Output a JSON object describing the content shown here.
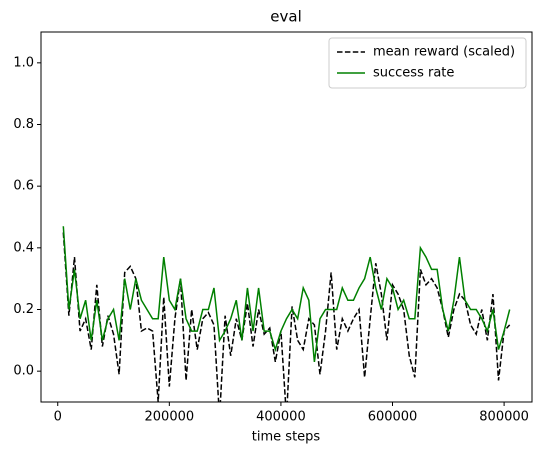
{
  "chart_data": {
    "type": "line",
    "title": "eval",
    "xlabel": "time steps",
    "x": [
      10000,
      20000,
      30000,
      40000,
      50000,
      60000,
      70000,
      80000,
      90000,
      100000,
      110000,
      120000,
      130000,
      140000,
      150000,
      160000,
      170000,
      180000,
      190000,
      200000,
      210000,
      220000,
      230000,
      240000,
      250000,
      260000,
      270000,
      280000,
      290000,
      300000,
      310000,
      320000,
      330000,
      340000,
      350000,
      360000,
      370000,
      380000,
      390000,
      400000,
      410000,
      420000,
      430000,
      440000,
      450000,
      460000,
      470000,
      480000,
      490000,
      500000,
      510000,
      520000,
      530000,
      540000,
      550000,
      560000,
      570000,
      580000,
      590000,
      600000,
      610000,
      620000,
      630000,
      640000,
      650000,
      660000,
      670000,
      680000,
      690000,
      700000,
      710000,
      720000,
      730000,
      740000,
      750000,
      760000,
      770000,
      780000,
      790000,
      800000,
      810000
    ],
    "series": [
      {
        "name": "mean reward (scaled)",
        "color": "#000000",
        "dashed": true,
        "values": [
          0.45,
          0.18,
          0.37,
          0.13,
          0.17,
          0.07,
          0.28,
          0.08,
          0.18,
          0.12,
          -0.01,
          0.32,
          0.34,
          0.3,
          0.13,
          0.14,
          0.13,
          -0.1,
          0.24,
          -0.05,
          0.17,
          0.3,
          -0.03,
          0.2,
          0.07,
          0.17,
          0.19,
          0.15,
          -0.15,
          0.18,
          0.05,
          0.17,
          0.1,
          0.22,
          0.08,
          0.2,
          0.12,
          0.14,
          0.03,
          0.13,
          -0.15,
          0.21,
          0.1,
          0.07,
          0.17,
          0.15,
          -0.01,
          0.13,
          0.32,
          0.07,
          0.17,
          0.13,
          0.17,
          0.2,
          -0.02,
          0.17,
          0.35,
          0.25,
          0.1,
          0.28,
          0.25,
          0.2,
          0.05,
          -0.02,
          0.33,
          0.28,
          0.3,
          0.27,
          0.2,
          0.11,
          0.2,
          0.25,
          0.23,
          0.15,
          0.12,
          0.2,
          0.1,
          0.25,
          -0.03,
          0.13,
          0.15
        ]
      },
      {
        "name": "success rate",
        "color": "#008000",
        "dashed": false,
        "values": [
          0.47,
          0.2,
          0.33,
          0.17,
          0.23,
          0.1,
          0.23,
          0.1,
          0.17,
          0.2,
          0.1,
          0.3,
          0.2,
          0.3,
          0.23,
          0.2,
          0.17,
          0.17,
          0.37,
          0.23,
          0.2,
          0.3,
          0.17,
          0.13,
          0.13,
          0.2,
          0.2,
          0.27,
          0.1,
          0.13,
          0.17,
          0.23,
          0.1,
          0.27,
          0.13,
          0.27,
          0.13,
          0.13,
          0.07,
          0.13,
          0.17,
          0.2,
          0.17,
          0.27,
          0.23,
          0.03,
          0.17,
          0.2,
          0.2,
          0.2,
          0.27,
          0.23,
          0.23,
          0.27,
          0.3,
          0.37,
          0.27,
          0.2,
          0.3,
          0.27,
          0.2,
          0.23,
          0.17,
          0.17,
          0.4,
          0.37,
          0.33,
          0.33,
          0.2,
          0.13,
          0.23,
          0.37,
          0.23,
          0.2,
          0.2,
          0.17,
          0.13,
          0.2,
          0.07,
          0.13,
          0.2
        ]
      }
    ],
    "xlim": [
      -30000,
      850000
    ],
    "ylim": [
      -0.1,
      1.1
    ],
    "xticks": [
      0,
      200000,
      400000,
      600000,
      800000
    ],
    "yticks": [
      {
        "value": 0,
        "label": "0.0"
      },
      0.2,
      0.4,
      0.6,
      0.8,
      {
        "value": 1,
        "label": "1.0"
      }
    ],
    "legend": "upper right"
  }
}
